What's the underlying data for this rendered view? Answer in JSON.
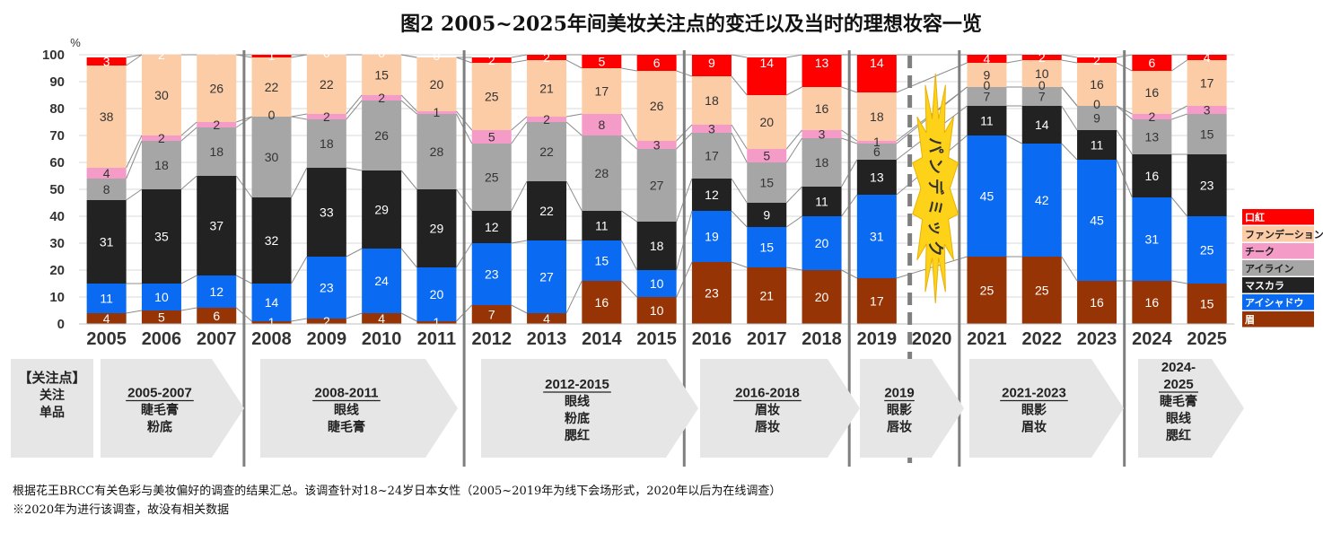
{
  "chart_data": {
    "type": "bar",
    "stacked": true,
    "title": "图2 2005~2025年间美妆关注点的变迁以及当时的理想妆容一览",
    "y_unit": "%",
    "ylim": [
      0,
      100
    ],
    "yticks": [
      "0",
      "10",
      "20",
      "30",
      "40",
      "50",
      "60",
      "70",
      "80",
      "90",
      "100"
    ],
    "grid": true,
    "legend_position": "right",
    "categories": [
      "2005",
      "2006",
      "2007",
      "2008",
      "2009",
      "2010",
      "2011",
      "2012",
      "2013",
      "2014",
      "2015",
      "2016",
      "2017",
      "2018",
      "2019",
      "2020",
      "2021",
      "2022",
      "2023",
      "2024",
      "2025"
    ],
    "series": [
      {
        "name": "眉",
        "color": "#963405",
        "values": [
          4,
          5,
          6,
          1,
          2,
          4,
          1,
          7,
          4,
          16,
          10,
          23,
          21,
          20,
          17,
          null,
          25,
          25,
          16,
          16,
          15
        ]
      },
      {
        "name": "アイシャドウ",
        "color": "#0a6af2",
        "values": [
          11,
          10,
          12,
          14,
          23,
          24,
          20,
          23,
          27,
          15,
          10,
          19,
          15,
          20,
          31,
          null,
          45,
          42,
          45,
          31,
          25
        ]
      },
      {
        "name": "マスカラ",
        "color": "#222222",
        "values": [
          31,
          35,
          37,
          32,
          33,
          29,
          29,
          12,
          22,
          11,
          18,
          12,
          9,
          11,
          13,
          null,
          11,
          14,
          11,
          16,
          23
        ]
      },
      {
        "name": "アイライン",
        "color": "#a6a6a6",
        "values": [
          8,
          18,
          18,
          30,
          18,
          26,
          28,
          25,
          22,
          28,
          27,
          17,
          15,
          18,
          6,
          null,
          7,
          7,
          9,
          13,
          15
        ]
      },
      {
        "name": "チーク",
        "color": "#f59bc8",
        "values": [
          4,
          2,
          2,
          0,
          2,
          2,
          1,
          5,
          2,
          8,
          3,
          3,
          5,
          3,
          1,
          null,
          0,
          0,
          0,
          2,
          3
        ]
      },
      {
        "name": "ファンデーション",
        "color": "#fbcca6",
        "values": [
          38,
          30,
          26,
          22,
          22,
          15,
          20,
          25,
          21,
          17,
          26,
          18,
          20,
          16,
          18,
          null,
          9,
          10,
          16,
          16,
          17
        ]
      },
      {
        "name": "口紅",
        "color": "#ff0000",
        "values": [
          3,
          2,
          0,
          1,
          0,
          0,
          0,
          2,
          2,
          5,
          6,
          9,
          14,
          13,
          14,
          null,
          4,
          2,
          2,
          6,
          4
        ]
      }
    ],
    "pandemic_label": "パンデミック",
    "periods": [
      {
        "range": "【关注点】",
        "items": [
          "关注",
          "单品"
        ]
      },
      {
        "range": "2005-2007",
        "items": [
          "睫毛膏",
          "粉底"
        ]
      },
      {
        "range": "2008-2011",
        "items": [
          "眼线",
          "睫毛膏"
        ]
      },
      {
        "range": "2012-2015",
        "items": [
          "眼线",
          "粉底",
          "腮红"
        ]
      },
      {
        "range": "2016-2018",
        "items": [
          "眉妆",
          "唇妆"
        ]
      },
      {
        "range": "2019",
        "items": [
          "眼影",
          "唇妆"
        ]
      },
      {
        "range": "2021-2023",
        "items": [
          "眼影",
          "眉妆"
        ]
      },
      {
        "range": "2024-2025",
        "items": [
          "睫毛膏",
          "眼线",
          "腮红"
        ]
      }
    ],
    "notes": [
      "根据花王BRCC有关色彩与美妆偏好的调查的结果汇总。该调查针对18~24岁日本女性（2005~2019年为线下会场形式，2020年以后为在线调查）",
      "※2020年为进行该调查，故没有相关数据"
    ]
  }
}
